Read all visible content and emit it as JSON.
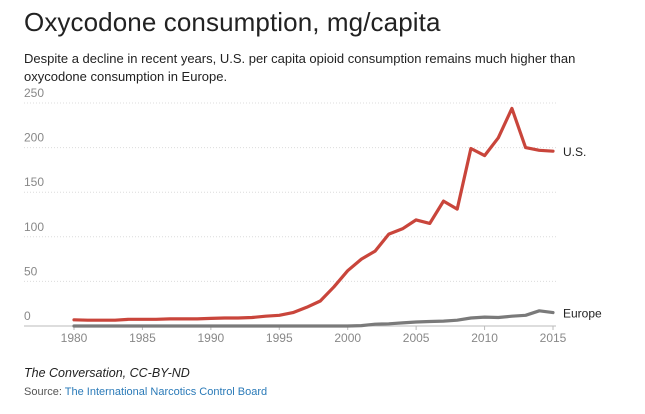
{
  "chart_data": {
    "type": "line",
    "title": "Oxycodone consumption, mg/capita",
    "subtitle": "Despite a decline in recent years, U.S. per capita opioid consumption remains much higher than oxycodone consumption in Europe.",
    "xlabel": "",
    "ylabel": "",
    "xlim": [
      1980,
      2015
    ],
    "ylim": [
      0,
      250
    ],
    "x_ticks": [
      1980,
      1985,
      1990,
      1995,
      2000,
      2005,
      2010,
      2015
    ],
    "y_ticks": [
      0,
      50,
      100,
      150,
      200,
      250
    ],
    "grid": true,
    "x": [
      1980,
      1981,
      1982,
      1983,
      1984,
      1985,
      1986,
      1987,
      1988,
      1989,
      1990,
      1991,
      1992,
      1993,
      1994,
      1995,
      1996,
      1997,
      1998,
      1999,
      2000,
      2001,
      2002,
      2003,
      2004,
      2005,
      2006,
      2007,
      2008,
      2009,
      2010,
      2011,
      2012,
      2013,
      2014,
      2015
    ],
    "series": [
      {
        "name": "U.S.",
        "color": "#c9453b",
        "values": [
          7,
          6.5,
          6.5,
          6.5,
          7.5,
          7.5,
          7.5,
          8,
          8,
          8,
          8.5,
          9,
          9,
          9.5,
          11,
          12,
          15,
          21,
          28,
          44,
          62,
          75,
          84,
          103,
          109,
          119,
          115,
          140,
          131,
          199,
          191,
          211,
          244,
          200,
          197,
          196
        ]
      },
      {
        "name": "Europe",
        "color": "#7a7a7a",
        "values": [
          0,
          0,
          0,
          0,
          0,
          0,
          0,
          0,
          0,
          0,
          0,
          0,
          0,
          0,
          0,
          0,
          0,
          0,
          0,
          0,
          0,
          0.5,
          2,
          2.5,
          3.5,
          4.5,
          5,
          5.5,
          6.5,
          9,
          10,
          9.5,
          11,
          12,
          17,
          15
        ]
      }
    ]
  },
  "footer": {
    "credit": "The Conversation, CC-BY-ND",
    "source_prefix": "Source:",
    "source_link": "The International Narcotics Control Board"
  }
}
